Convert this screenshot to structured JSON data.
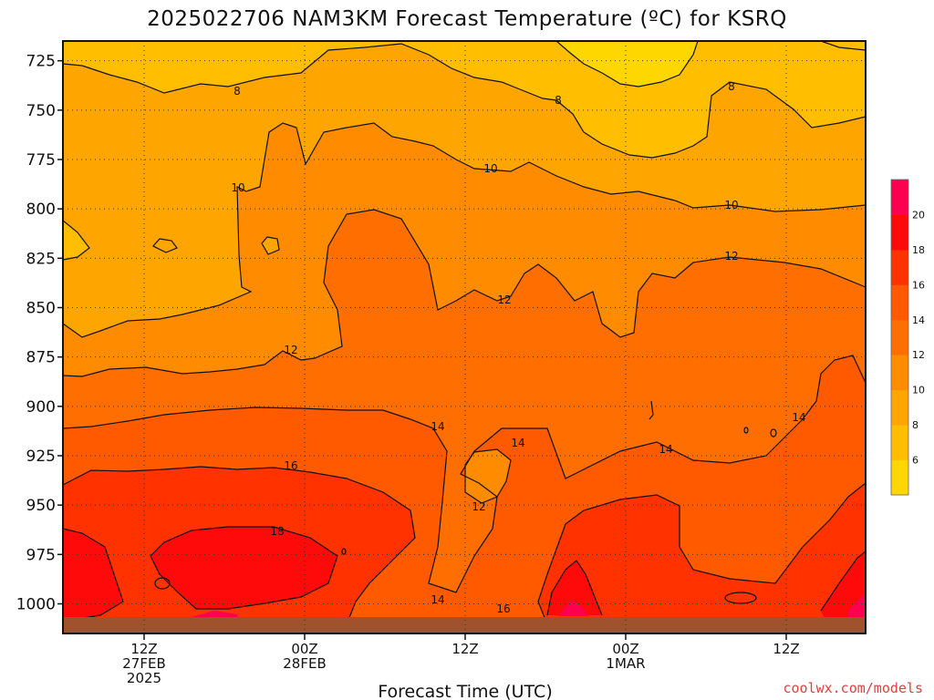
{
  "chart_data": {
    "type": "heatmap",
    "title": "2025022706 NAM3KM Forecast Temperature (ºC) for KSRQ",
    "xlabel": "Forecast Time (UTC)",
    "ylabel": "",
    "y_scale": "pressure (hPa), increasing downward",
    "ylim": [
      715,
      1015
    ],
    "yticks": [
      725,
      750,
      775,
      800,
      825,
      850,
      875,
      900,
      925,
      950,
      975,
      1000
    ],
    "xticks": [
      {
        "label": "12Z",
        "sub1": "27FEB",
        "sub2": "2025"
      },
      {
        "label": "00Z",
        "sub1": "28FEB",
        "sub2": ""
      },
      {
        "label": "12Z",
        "sub1": "",
        "sub2": ""
      },
      {
        "label": "00Z",
        "sub1": "1MAR",
        "sub2": ""
      },
      {
        "label": "12Z",
        "sub1": "",
        "sub2": ""
      }
    ],
    "colorbar": {
      "labels": [
        6,
        8,
        10,
        12,
        14,
        16,
        18,
        20
      ],
      "colors": [
        "#ffd700",
        "#ffbf00",
        "#ffa500",
        "#ff8c00",
        "#ff6e00",
        "#ff5a00",
        "#ff3200",
        "#ff0a0a",
        "#ff0050"
      ]
    },
    "contour_labels": [
      "8",
      "8",
      "8",
      "10",
      "10",
      "10",
      "12",
      "12",
      "12",
      "12",
      "14",
      "14",
      "14",
      "14",
      "14",
      "16",
      "16",
      "18"
    ],
    "grid": "dotted",
    "ground_color": "#a0522d",
    "credit": "coolwx.com/models"
  }
}
